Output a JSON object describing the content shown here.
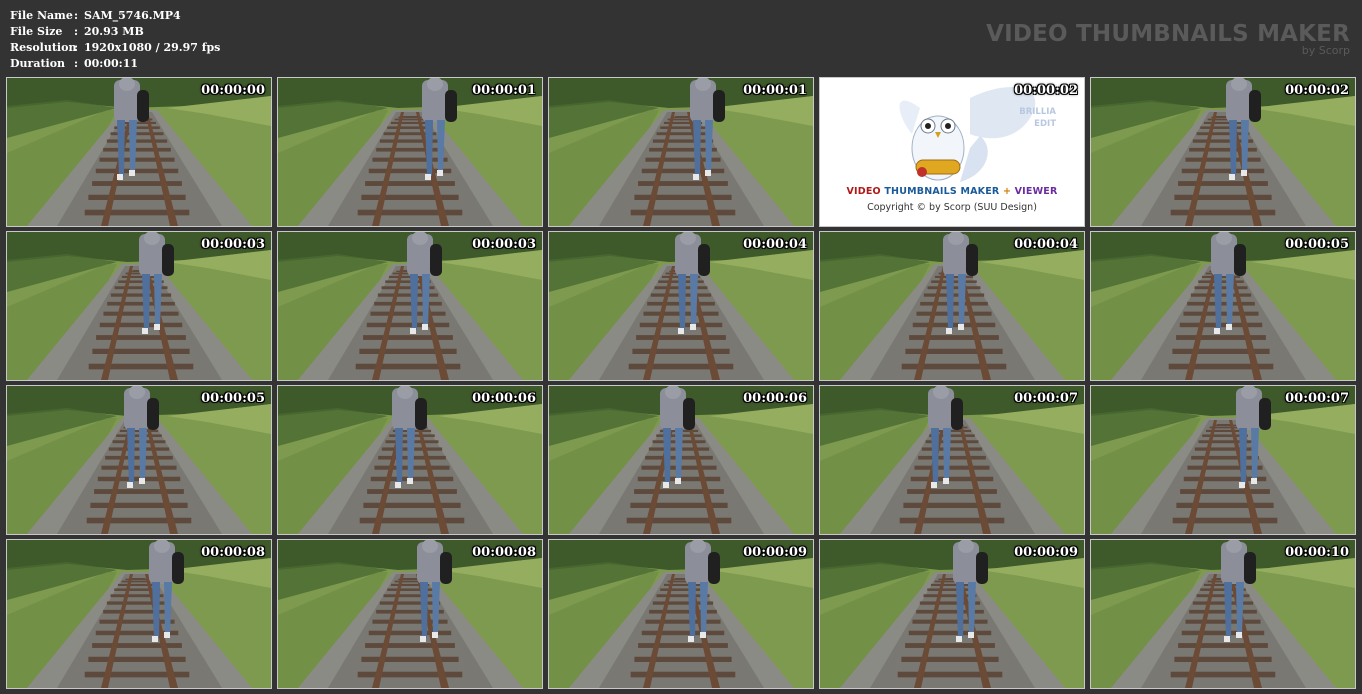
{
  "info": {
    "rows": [
      {
        "key": "File Name",
        "sep": ":",
        "value": "SAM_5746.MP4"
      },
      {
        "key": "File Size",
        "sep": ":",
        "value": "20.93 MB"
      },
      {
        "key": "Resolution",
        "sep": ":",
        "value": "1920x1080 / 29.97 fps"
      },
      {
        "key": "Duration",
        "sep": ":",
        "value": "00:00:11"
      }
    ]
  },
  "brand": {
    "title": "VIDEO THUMBNAILS MAKER",
    "subtitle": "by Scorp"
  },
  "promo": {
    "word_video": "VIDEO",
    "word_thumbnails_maker": "THUMBNAILS MAKER",
    "word_plus": "+",
    "word_viewer": "VIEWER",
    "copyright": "Copyright © by Scorp (SUU Design)",
    "side_line1": "BRILLIA",
    "side_line2": "EDIT",
    "side_ts": "00:00:02"
  },
  "thumbnails": [
    {
      "timestamp": "00:00:00"
    },
    {
      "timestamp": "00:00:01"
    },
    {
      "timestamp": "00:00:01"
    },
    {
      "timestamp": "00:00:02",
      "promo": true
    },
    {
      "timestamp": "00:00:02"
    },
    {
      "timestamp": "00:00:03"
    },
    {
      "timestamp": "00:00:03"
    },
    {
      "timestamp": "00:00:04"
    },
    {
      "timestamp": "00:00:04"
    },
    {
      "timestamp": "00:00:05"
    },
    {
      "timestamp": "00:00:05"
    },
    {
      "timestamp": "00:00:06"
    },
    {
      "timestamp": "00:00:06"
    },
    {
      "timestamp": "00:00:07"
    },
    {
      "timestamp": "00:00:07"
    },
    {
      "timestamp": "00:00:08"
    },
    {
      "timestamp": "00:00:08"
    },
    {
      "timestamp": "00:00:09"
    },
    {
      "timestamp": "00:00:09"
    },
    {
      "timestamp": "00:00:10"
    }
  ],
  "colors": {
    "background": "#333333",
    "grass": "#7e9a4e",
    "gravel": "#8a8a86",
    "rail": "#6b4a36",
    "jacket": "#8c8f99",
    "jeans": "#4f6f9c"
  }
}
